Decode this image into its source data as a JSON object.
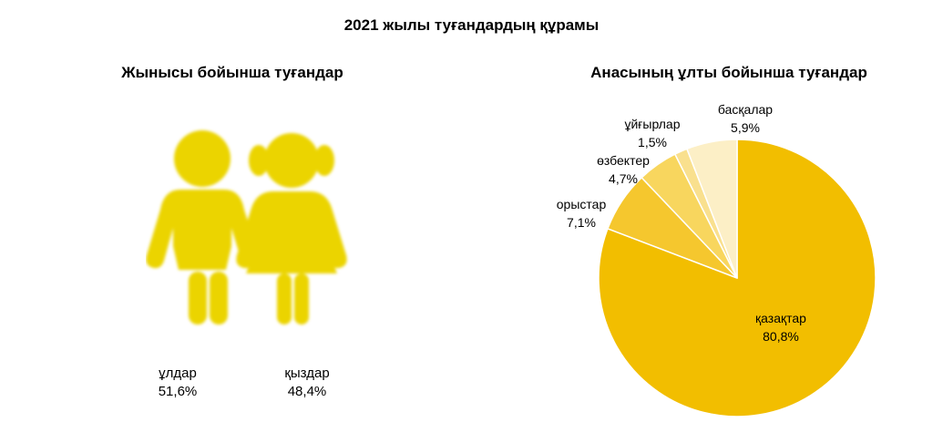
{
  "title": "2021 жылы туғандардың  құрамы",
  "left_chart": {
    "title": "Жынысы бойынша туғандар",
    "items": [
      {
        "label": "ұлдар",
        "value": "51,6%"
      },
      {
        "label": "қыздар",
        "value": "48,4%"
      }
    ],
    "icon_color": "#EBD400"
  },
  "chart_data": [
    {
      "type": "pictogram",
      "title": "Жынысы бойынша туғандар",
      "categories": [
        "ұлдар",
        "қыздар"
      ],
      "values": [
        51.6,
        48.4
      ],
      "unit": "%"
    },
    {
      "type": "pie",
      "title": "Анасының ұлты бойынша туғандар",
      "start_angle_deg": 0,
      "direction": "clockwise",
      "slices": [
        {
          "label": "қазақтар",
          "value": 80.8,
          "text": "80,8%",
          "color": "#F2BE00"
        },
        {
          "label": "орыстар",
          "value": 7.1,
          "text": "7,1%",
          "color": "#F5C72E"
        },
        {
          "label": "өзбектер",
          "value": 4.7,
          "text": "4,7%",
          "color": "#F8D65E"
        },
        {
          "label": "ұйғырлар",
          "value": 1.5,
          "text": "1,5%",
          "color": "#F9E08E"
        },
        {
          "label": "басқалар",
          "value": 5.9,
          "text": "5,9%",
          "color": "#FCEFC6"
        }
      ]
    }
  ]
}
